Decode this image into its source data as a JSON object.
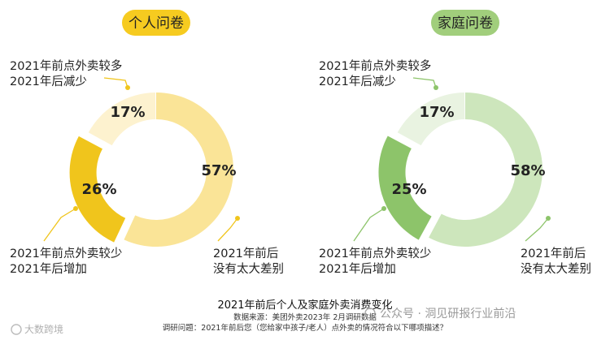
{
  "colors": {
    "personal_dark": "#F0C51C",
    "personal_mid": "#FAE497",
    "personal_light": "#FDF2CF",
    "personal_pill": "#F6CB20",
    "family_dark": "#8DC46A",
    "family_mid": "#CDE6BC",
    "family_light": "#E9F3E1",
    "family_pill": "#A1CE7C"
  },
  "chart_data": [
    {
      "type": "pie",
      "title": "个人问卷",
      "slices": [
        {
          "label_lines": [
            "2021年前后",
            "没有太大差别"
          ],
          "value": 57,
          "value_label": "57%"
        },
        {
          "label_lines": [
            "2021年前点外卖较少",
            "2021年后增加"
          ],
          "value": 26,
          "value_label": "26%"
        },
        {
          "label_lines": [
            "2021年前点外卖较多",
            "2021年后减少"
          ],
          "value": 17,
          "value_label": "17%"
        }
      ]
    },
    {
      "type": "pie",
      "title": "家庭问卷",
      "slices": [
        {
          "label_lines": [
            "2021年前后",
            "没有太大差别"
          ],
          "value": 58,
          "value_label": "58%"
        },
        {
          "label_lines": [
            "2021年前点外卖较少",
            "2021年后增加"
          ],
          "value": 25,
          "value_label": "25%"
        },
        {
          "label_lines": [
            "2021年前点外卖较多",
            "2021年后减少"
          ],
          "value": 17,
          "value_label": "17%"
        }
      ]
    }
  ],
  "footer": {
    "title": "2021年前后个人及家庭外卖消费变化",
    "source": "数据来源：美团外卖2023年 2月调研数据",
    "question": "调研问题：2021年前后您（您给家中孩子/老人）点外卖的情况符合以下哪项描述？"
  },
  "watermarks": {
    "right": "公众号 · 洞见研报行业前沿",
    "left": "大数跨境"
  }
}
